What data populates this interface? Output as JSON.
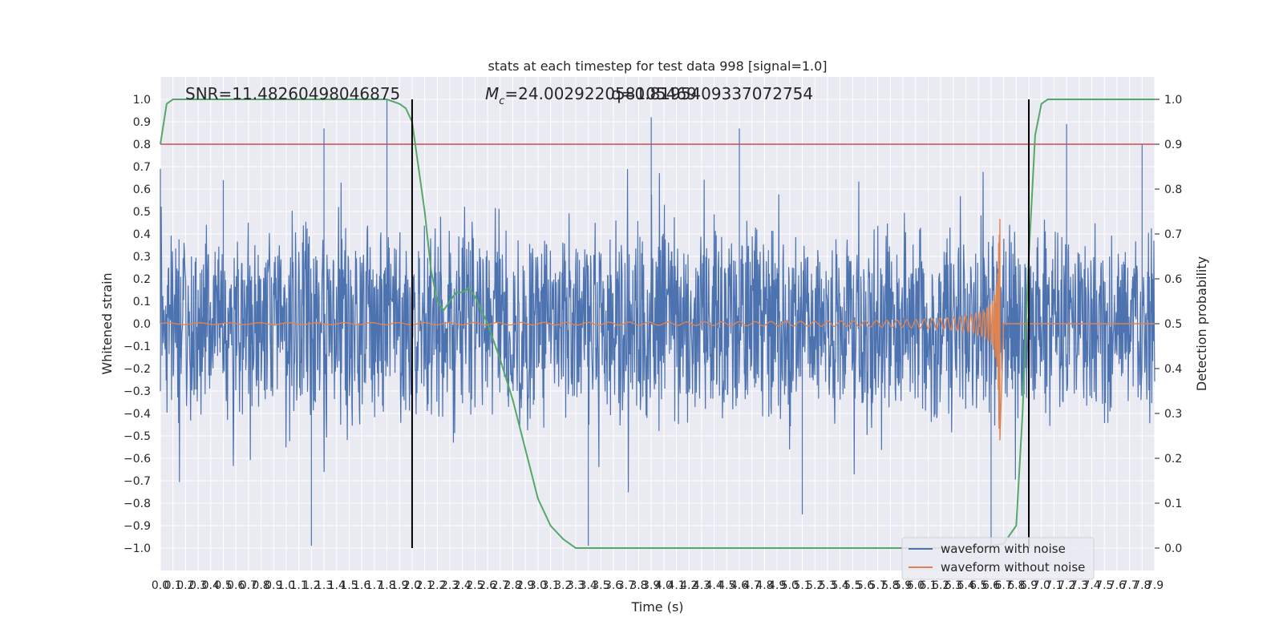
{
  "chart_data": {
    "type": "line",
    "title": "stats at each timestep for test data 998 [signal=1.0]",
    "xlabel": "Time (s)",
    "ylabel_left": "Whitened strain",
    "ylabel_right": "Detection probability",
    "annotations": {
      "snr": "SNR=11.48260498046875",
      "mc": "=24.002922058105469",
      "mc_symbol": "M",
      "mc_sub": "c",
      "overlap": "q=0.8195409337072754"
    },
    "xlim": [
      0.0,
      7.9
    ],
    "ylim_left": [
      -1.1,
      1.1
    ],
    "ylim_right": [
      -0.05,
      1.05
    ],
    "x_ticks": [
      "0.0",
      "0.1",
      "0.2",
      "0.3",
      "0.4",
      "0.5",
      "0.6",
      "0.7",
      "0.8",
      "0.9",
      "1.0",
      "1.1",
      "1.2",
      "1.3",
      "1.4",
      "1.5",
      "1.6",
      "1.7",
      "1.8",
      "1.9",
      "2.0",
      "2.1",
      "2.2",
      "2.3",
      "2.4",
      "2.5",
      "2.6",
      "2.7",
      "2.8",
      "2.9",
      "3.0",
      "3.1",
      "3.2",
      "3.3",
      "3.4",
      "3.5",
      "3.6",
      "3.7",
      "3.8",
      "3.9",
      "4.0",
      "4.1",
      "4.2",
      "4.3",
      "4.4",
      "4.5",
      "4.6",
      "4.7",
      "4.8",
      "4.9",
      "5.0",
      "5.1",
      "5.2",
      "5.3",
      "5.4",
      "5.5",
      "5.6",
      "5.7",
      "5.8",
      "5.9",
      "6.0",
      "6.1",
      "6.2",
      "6.3",
      "6.4",
      "6.5",
      "6.6",
      "6.7",
      "6.8",
      "6.9",
      "7.0",
      "7.1",
      "7.2",
      "7.3",
      "7.4",
      "7.5",
      "7.6",
      "7.7",
      "7.8",
      "7.9"
    ],
    "y_ticks_left": [
      "1.0",
      "0.9",
      "0.8",
      "0.7",
      "0.6",
      "0.5",
      "0.4",
      "0.3",
      "0.2",
      "0.1",
      "0.0",
      "−0.1",
      "−0.2",
      "−0.3",
      "−0.4",
      "−0.5",
      "−0.6",
      "−0.7",
      "−0.8",
      "−0.9",
      "−1.0"
    ],
    "y_ticks_right": [
      "1.0",
      "0.9",
      "0.8",
      "0.7",
      "0.6",
      "0.5",
      "0.4",
      "0.3",
      "0.2",
      "0.1",
      "0.0"
    ],
    "threshold": {
      "value": 0.8,
      "axis": "left",
      "color": "#c44e52"
    },
    "vertical_markers": [
      2.0,
      6.9
    ],
    "series": [
      {
        "name": "waveform with noise",
        "axis": "left",
        "color": "#4c72b0",
        "peak_envelope": [
          {
            "x": 0.0,
            "y": 0.69
          },
          {
            "x": 0.5,
            "y": 0.6
          },
          {
            "x": 0.5,
            "y": 0.64
          },
          {
            "x": 1.2,
            "y": -0.99
          },
          {
            "x": 1.3,
            "y": 0.87
          },
          {
            "x": 1.8,
            "y": 1.0
          },
          {
            "x": 3.4,
            "y": -0.99
          },
          {
            "x": 3.9,
            "y": 0.92
          },
          {
            "x": 4.6,
            "y": 0.87
          },
          {
            "x": 5.1,
            "y": -0.85
          },
          {
            "x": 6.6,
            "y": -0.99
          },
          {
            "x": 7.2,
            "y": 0.89
          },
          {
            "x": 7.8,
            "y": 0.8
          }
        ],
        "typical_amplitude": 0.4
      },
      {
        "name": "waveform without noise",
        "axis": "left",
        "color": "#dd8452",
        "chirp": {
          "start": 0.0,
          "merger": 6.67,
          "peak_amplitude": 0.52,
          "trough_amplitude": -0.52
        }
      },
      {
        "name": "detection probability",
        "axis": "right",
        "color": "#55a868",
        "x": [
          0.0,
          0.05,
          0.1,
          0.2,
          1.8,
          1.9,
          1.95,
          2.0,
          2.05,
          2.1,
          2.15,
          2.2,
          2.25,
          2.3,
          2.35,
          2.4,
          2.45,
          2.5,
          2.55,
          2.6,
          2.7,
          2.8,
          2.9,
          3.0,
          3.1,
          3.2,
          3.3,
          3.5,
          4.0,
          5.0,
          6.0,
          6.5,
          6.7,
          6.8,
          6.85,
          6.9,
          6.95,
          7.0,
          7.05,
          7.1,
          7.3,
          7.9
        ],
        "values": [
          0.9,
          0.99,
          1.0,
          1.0,
          1.0,
          0.99,
          0.98,
          0.95,
          0.85,
          0.75,
          0.62,
          0.55,
          0.53,
          0.55,
          0.57,
          0.57,
          0.58,
          0.56,
          0.53,
          0.5,
          0.42,
          0.33,
          0.22,
          0.11,
          0.05,
          0.02,
          0.0,
          0.0,
          0.0,
          0.0,
          0.0,
          0.0,
          0.01,
          0.05,
          0.3,
          0.65,
          0.92,
          0.99,
          1.0,
          1.0,
          1.0,
          1.0
        ]
      }
    ],
    "legend": {
      "placement": "lower-right",
      "entries": [
        "waveform with noise",
        "waveform without noise"
      ]
    }
  }
}
